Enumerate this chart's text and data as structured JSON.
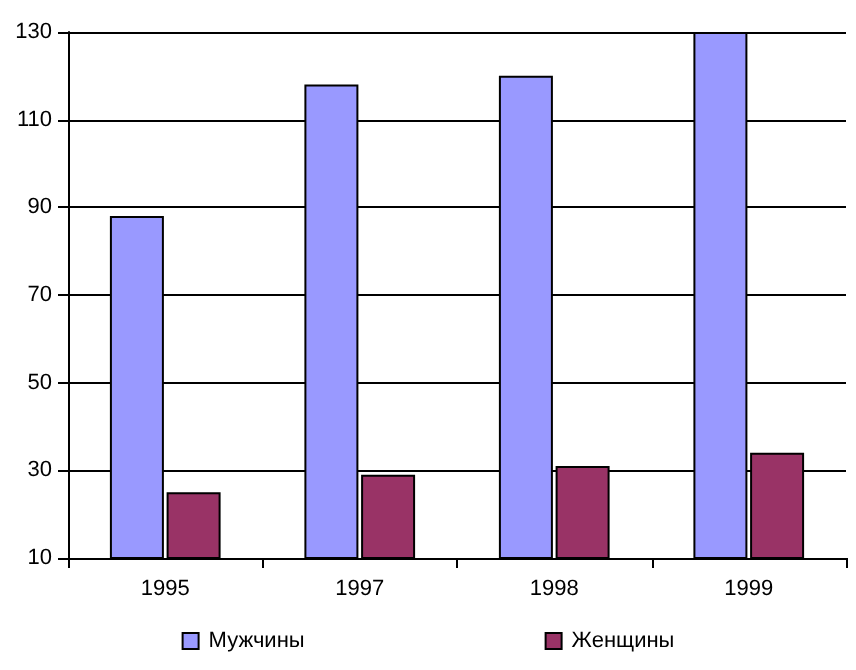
{
  "chart_data": {
    "type": "bar",
    "categories": [
      "1995",
      "1997",
      "1998",
      "1999"
    ],
    "series": [
      {
        "name": "Мужчины",
        "color": "#9999ff",
        "values": [
          88,
          118,
          120,
          130
        ]
      },
      {
        "name": "Женщины",
        "color": "#993366",
        "values": [
          25,
          29,
          31,
          34
        ]
      }
    ],
    "ylim": [
      10,
      130
    ],
    "yticks": [
      10,
      30,
      50,
      70,
      90,
      110,
      130
    ],
    "grid": "y",
    "legend": "bottom"
  }
}
